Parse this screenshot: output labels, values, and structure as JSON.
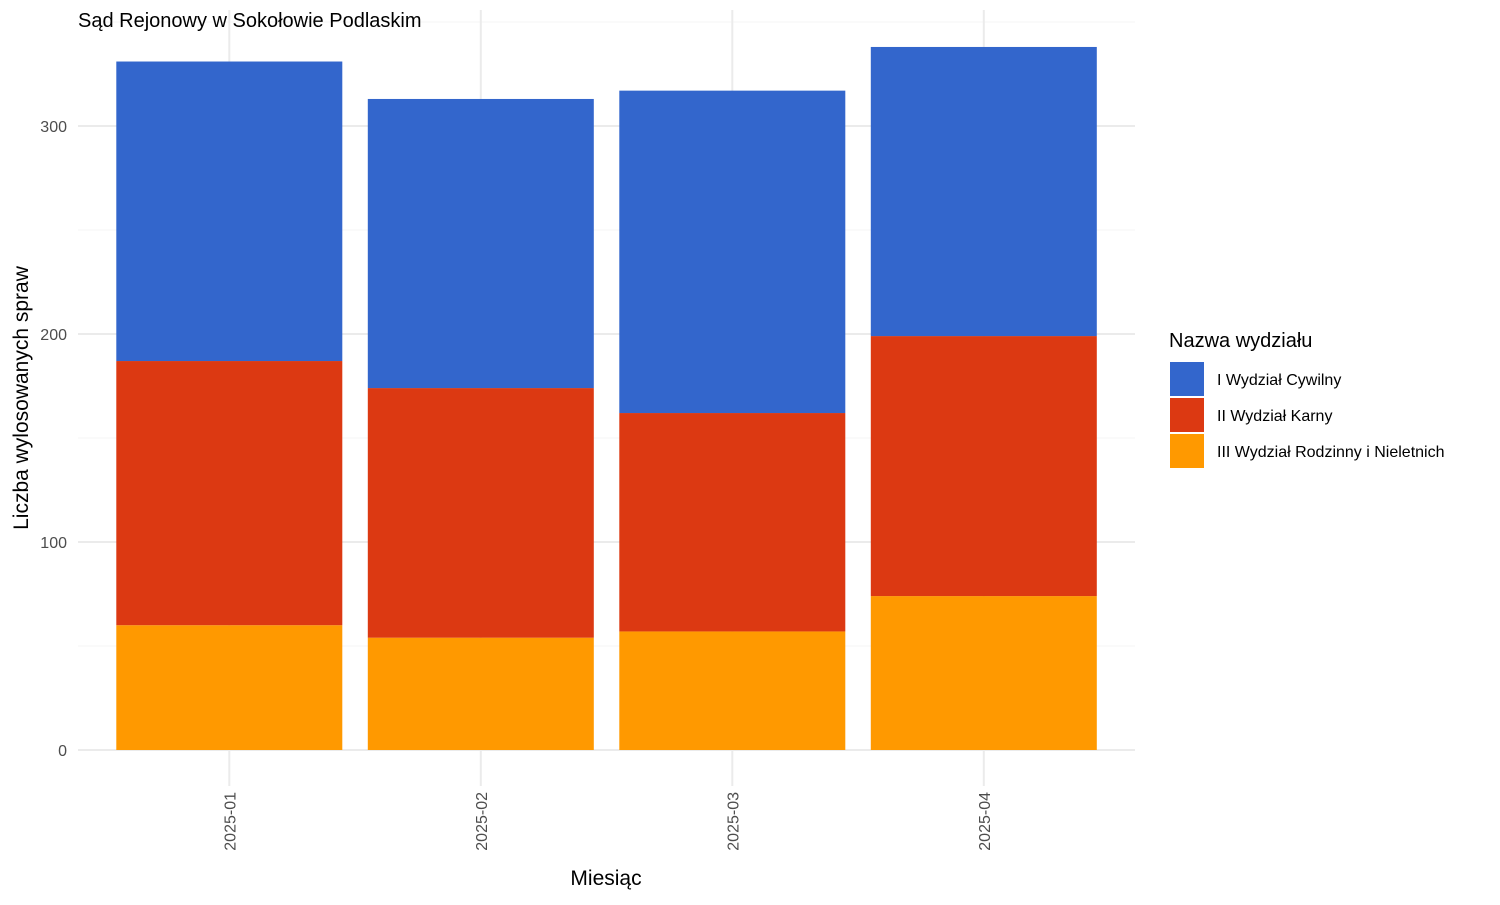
{
  "chart_data": {
    "type": "bar",
    "stacked": true,
    "title": "Sąd Rejonowy w Sokołowie Podlaskim",
    "xlabel": "Miesiąc",
    "ylabel": "Liczba wylosowanych spraw",
    "categories": [
      "2025-01",
      "2025-02",
      "2025-03",
      "2025-04"
    ],
    "yticks": [
      "0",
      "100",
      "200",
      "300"
    ],
    "ylim": [
      0,
      340
    ],
    "grid": true,
    "legend": {
      "title": "Nazwa wydziału",
      "position": "right"
    },
    "series": [
      {
        "name": "III Wydział Rodzinny i Nieletnich",
        "color": "#FF9900",
        "values": [
          60,
          54,
          57,
          74
        ]
      },
      {
        "name": "II Wydział Karny",
        "color": "#DC3912",
        "values": [
          127,
          120,
          105,
          125
        ]
      },
      {
        "name": "I Wydział Cywilny",
        "color": "#3366CC",
        "values": [
          144,
          139,
          155,
          139
        ]
      }
    ],
    "legend_order": [
      2,
      1,
      0
    ]
  }
}
